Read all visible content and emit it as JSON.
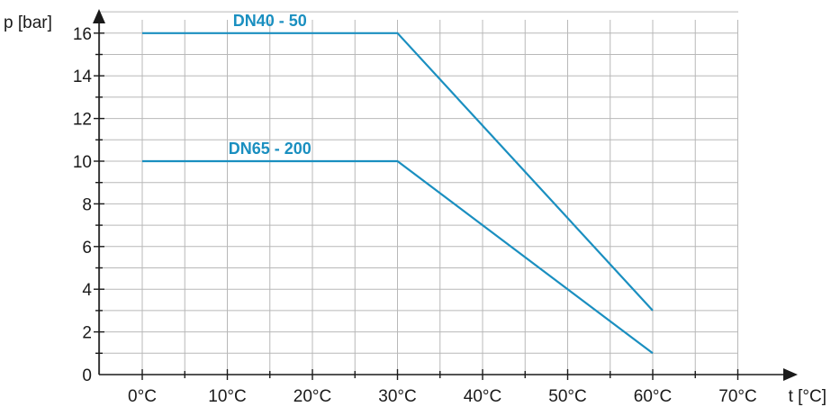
{
  "chart_data": {
    "type": "line",
    "xlabel": "t [°C]",
    "ylabel": "p [bar]",
    "xlim": [
      -5,
      75
    ],
    "ylim": [
      0,
      17
    ],
    "x_ticks": [
      0,
      10,
      20,
      30,
      40,
      50,
      60,
      70
    ],
    "x_tick_labels": [
      "0°C",
      "10°C",
      "20°C",
      "30°C",
      "40°C",
      "50°C",
      "60°C",
      "70°C"
    ],
    "y_ticks": [
      0,
      2,
      4,
      6,
      8,
      10,
      12,
      14,
      16
    ],
    "y_tick_labels": [
      "0",
      "2",
      "4",
      "6",
      "8",
      "10",
      "12",
      "14",
      "16"
    ],
    "grid": true,
    "series": [
      {
        "name": "DN40 - 50",
        "color": "#1a8fc0",
        "x": [
          0,
          30,
          60
        ],
        "y": [
          16,
          16,
          3
        ]
      },
      {
        "name": "DN65 - 200",
        "color": "#1a8fc0",
        "x": [
          0,
          30,
          60
        ],
        "y": [
          10,
          10,
          1
        ]
      }
    ]
  }
}
